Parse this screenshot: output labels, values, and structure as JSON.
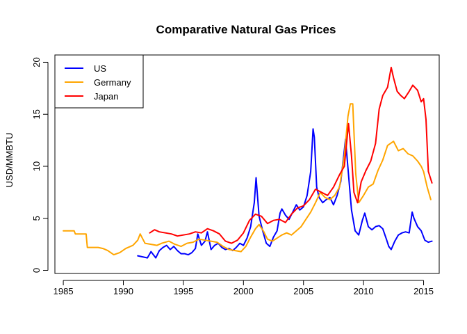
{
  "chart_data": {
    "type": "line",
    "title": "Comparative Natural Gas Prices",
    "xlabel": "",
    "ylabel": "USD/MMBTU",
    "xlim": [
      1984.3,
      2016.3
    ],
    "ylim": [
      -0.3,
      20.7
    ],
    "x_ticks": [
      1985,
      1990,
      1995,
      2000,
      2005,
      2010,
      2015
    ],
    "y_ticks": [
      0,
      5,
      10,
      15,
      20
    ],
    "grid": false,
    "legend": "top-left",
    "series": [
      {
        "name": "US",
        "color": "#0000ff",
        "x": [
          1991.2,
          1991.6,
          1992.0,
          1992.3,
          1992.7,
          1993.0,
          1993.3,
          1993.6,
          1993.9,
          1994.2,
          1994.5,
          1994.8,
          1995.1,
          1995.4,
          1995.7,
          1996.0,
          1996.2,
          1996.5,
          1996.8,
          1997.0,
          1997.3,
          1997.6,
          1997.9,
          1998.2,
          1998.5,
          1998.8,
          1999.1,
          1999.4,
          1999.7,
          2000.0,
          2000.3,
          2000.6,
          2000.9,
          2001.05,
          2001.3,
          2001.6,
          2001.9,
          2002.2,
          2002.5,
          2002.8,
          2003.05,
          2003.2,
          2003.5,
          2003.8,
          2004.1,
          2004.4,
          2004.7,
          2005.0,
          2005.3,
          2005.6,
          2005.8,
          2005.9,
          2006.1,
          2006.3,
          2006.6,
          2006.9,
          2007.2,
          2007.5,
          2007.8,
          2008.1,
          2008.35,
          2008.5,
          2008.75,
          2009.0,
          2009.3,
          2009.6,
          2009.9,
          2010.1,
          2010.4,
          2010.7,
          2011.0,
          2011.3,
          2011.6,
          2011.9,
          2012.1,
          2012.3,
          2012.6,
          2012.9,
          2013.2,
          2013.5,
          2013.8,
          2014.05,
          2014.2,
          2014.5,
          2014.8,
          2015.1,
          2015.4,
          2015.7
        ],
        "values": [
          1.4,
          1.3,
          1.2,
          1.8,
          1.2,
          1.9,
          2.2,
          2.4,
          2.0,
          2.3,
          1.9,
          1.6,
          1.6,
          1.5,
          1.7,
          2.1,
          3.5,
          2.4,
          2.8,
          3.7,
          2.0,
          2.4,
          2.6,
          2.2,
          2.0,
          2.1,
          1.9,
          2.2,
          2.6,
          2.4,
          3.1,
          4.2,
          6.5,
          8.9,
          5.2,
          3.8,
          2.6,
          2.3,
          3.2,
          3.8,
          5.5,
          5.9,
          5.3,
          4.9,
          5.6,
          6.3,
          5.8,
          6.1,
          7.2,
          9.5,
          13.6,
          12.8,
          8.0,
          7.0,
          6.5,
          6.8,
          7.0,
          6.3,
          7.2,
          8.5,
          11.0,
          12.6,
          9.2,
          5.8,
          3.8,
          3.4,
          4.8,
          5.5,
          4.2,
          3.9,
          4.2,
          4.3,
          4.0,
          3.0,
          2.3,
          2.0,
          2.8,
          3.4,
          3.6,
          3.7,
          3.6,
          5.6,
          5.0,
          4.2,
          3.8,
          2.9,
          2.7,
          2.8
        ]
      },
      {
        "name": "Germany",
        "color": "#ffa500",
        "x": [
          1985.0,
          1985.9,
          1986.0,
          1986.9,
          1987.0,
          1987.9,
          1988.3,
          1988.7,
          1989.2,
          1989.7,
          1990.2,
          1990.8,
          1991.2,
          1991.4,
          1991.8,
          1992.3,
          1992.8,
          1993.2,
          1993.8,
          1994.3,
          1994.8,
          1995.3,
          1995.8,
          1996.3,
          1996.8,
          1997.3,
          1997.8,
          1998.3,
          1998.8,
          1999.3,
          1999.8,
          2000.2,
          2000.6,
          2001.0,
          2001.3,
          2001.7,
          2002.0,
          2002.4,
          2002.8,
          2003.2,
          2003.6,
          2004.0,
          2004.4,
          2004.8,
          2005.2,
          2005.6,
          2006.0,
          2006.4,
          2006.8,
          2007.2,
          2007.6,
          2008.0,
          2008.4,
          2008.7,
          2008.9,
          2009.1,
          2009.35,
          2009.6,
          2010.0,
          2010.4,
          2010.8,
          2011.2,
          2011.6,
          2012.0,
          2012.5,
          2012.9,
          2013.3,
          2013.7,
          2014.1,
          2014.5,
          2014.8,
          2015.0,
          2015.3,
          2015.6
        ],
        "values": [
          3.8,
          3.8,
          3.5,
          3.5,
          2.2,
          2.2,
          2.1,
          1.9,
          1.5,
          1.7,
          2.1,
          2.4,
          2.9,
          3.5,
          2.6,
          2.5,
          2.4,
          2.6,
          2.8,
          2.5,
          2.3,
          2.6,
          2.7,
          3.0,
          2.9,
          2.8,
          2.7,
          2.3,
          2.0,
          1.9,
          1.8,
          2.3,
          3.2,
          4.0,
          4.4,
          3.7,
          3.0,
          2.8,
          3.1,
          3.4,
          3.6,
          3.4,
          3.8,
          4.2,
          4.9,
          5.6,
          6.5,
          7.5,
          7.0,
          6.8,
          7.2,
          8.0,
          11.0,
          14.8,
          16.0,
          16.0,
          9.3,
          6.5,
          7.2,
          8.0,
          8.3,
          9.6,
          10.6,
          12.0,
          12.4,
          11.5,
          11.7,
          11.2,
          11.0,
          10.5,
          10.0,
          9.5,
          8.0,
          6.8
        ]
      },
      {
        "name": "Japan",
        "color": "#ff0000",
        "x": [
          1992.2,
          1992.6,
          1993.0,
          1993.5,
          1994.0,
          1994.5,
          1995.0,
          1995.5,
          1996.0,
          1996.5,
          1997.0,
          1997.5,
          1998.0,
          1998.5,
          1999.0,
          1999.5,
          2000.0,
          2000.5,
          2001.0,
          2001.5,
          2002.0,
          2002.5,
          2003.0,
          2003.5,
          2004.0,
          2004.5,
          2005.0,
          2005.5,
          2006.0,
          2006.5,
          2007.0,
          2007.5,
          2008.0,
          2008.4,
          2008.75,
          2009.0,
          2009.2,
          2009.5,
          2009.8,
          2010.2,
          2010.6,
          2011.0,
          2011.3,
          2011.6,
          2012.0,
          2012.3,
          2012.5,
          2012.8,
          2013.1,
          2013.4,
          2013.8,
          2014.1,
          2014.5,
          2014.8,
          2015.0,
          2015.2,
          2015.4,
          2015.7
        ],
        "values": [
          3.6,
          3.9,
          3.7,
          3.6,
          3.5,
          3.3,
          3.4,
          3.5,
          3.7,
          3.6,
          4.0,
          3.8,
          3.5,
          2.8,
          2.6,
          2.9,
          3.6,
          4.8,
          5.4,
          5.2,
          4.5,
          4.8,
          4.9,
          4.6,
          5.4,
          6.0,
          6.2,
          6.8,
          7.8,
          7.5,
          7.2,
          8.0,
          9.2,
          10.0,
          14.1,
          11.0,
          7.5,
          6.5,
          8.5,
          9.6,
          10.5,
          12.2,
          15.5,
          16.8,
          17.6,
          19.5,
          18.5,
          17.2,
          16.8,
          16.5,
          17.2,
          17.8,
          17.3,
          16.2,
          16.5,
          14.5,
          9.5,
          8.4
        ]
      }
    ]
  }
}
